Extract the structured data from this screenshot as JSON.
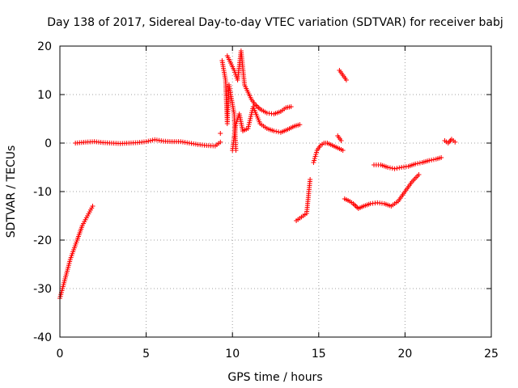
{
  "chart_data": {
    "type": "scatter",
    "title": "Day 138 of 2017, Sidereal Day-to-day VTEC variation (SDTVAR) for receiver babj",
    "xlabel": "GPS time / hours",
    "ylabel": "SDTVAR / TECUs",
    "xlim": [
      0,
      25
    ],
    "ylim": [
      -40,
      20
    ],
    "xticks": [
      0,
      5,
      10,
      15,
      20,
      25
    ],
    "yticks": [
      -40,
      -30,
      -20,
      -10,
      0,
      10,
      20
    ],
    "grid": true,
    "marker": "+",
    "color": "#ff0000",
    "segments": [
      {
        "name": "descent-start",
        "x": [
          0.0,
          0.3,
          0.6,
          1.0,
          1.3,
          1.6,
          1.9
        ],
        "y": [
          -32,
          -28,
          -24,
          -20,
          -17,
          -15,
          -13
        ]
      },
      {
        "name": "baseline-1",
        "x": [
          0.9,
          1.5,
          2.0,
          2.5,
          3.0,
          3.5,
          4.0,
          4.5,
          5.0,
          5.5,
          6.0,
          6.5,
          7.0,
          7.5,
          8.0,
          8.5,
          9.0,
          9.3
        ],
        "y": [
          0.0,
          0.2,
          0.3,
          0.1,
          0.0,
          -0.1,
          0.0,
          0.1,
          0.3,
          0.7,
          0.4,
          0.3,
          0.3,
          0.0,
          -0.3,
          -0.5,
          -0.6,
          0.2
        ]
      },
      {
        "name": "scatter-9h",
        "x": [
          9.3,
          9.4,
          9.5,
          9.6,
          9.7,
          9.8,
          9.9,
          10.0,
          10.1,
          10.2
        ],
        "y": [
          2.0,
          17.0,
          15.0,
          13.0,
          4.0,
          12.0,
          10.0,
          8.0,
          6.0,
          -1.5
        ]
      },
      {
        "name": "upper-branch",
        "x": [
          9.7,
          9.9,
          10.1,
          10.3,
          10.5,
          10.7,
          10.9,
          11.1,
          11.3,
          11.6,
          12.0,
          12.4,
          12.8,
          13.1,
          13.4
        ],
        "y": [
          18.0,
          16.5,
          15.0,
          13.0,
          19.0,
          12.0,
          10.5,
          9.0,
          8.0,
          7.0,
          6.2,
          6.0,
          6.5,
          7.3,
          7.5
        ]
      },
      {
        "name": "lower-branch",
        "x": [
          10.0,
          10.2,
          10.4,
          10.6,
          10.9,
          11.2,
          11.6,
          12.0,
          12.4,
          12.8,
          13.2,
          13.6,
          13.9
        ],
        "y": [
          -1.5,
          4.0,
          6.0,
          2.5,
          3.0,
          7.5,
          4.0,
          3.0,
          2.5,
          2.2,
          2.8,
          3.5,
          3.8
        ]
      },
      {
        "name": "late-rise-1",
        "x": [
          13.7,
          13.9,
          14.1,
          14.3,
          14.5
        ],
        "y": [
          -16.0,
          -15.5,
          -15.0,
          -14.5,
          -7.5
        ]
      },
      {
        "name": "hump-15h",
        "x": [
          14.7,
          14.9,
          15.1,
          15.3,
          15.5,
          15.8,
          16.1,
          16.4
        ],
        "y": [
          -4.0,
          -1.5,
          -0.5,
          0.0,
          0.0,
          -0.5,
          -1.0,
          -1.5
        ]
      },
      {
        "name": "peak-16h",
        "x": [
          16.2,
          16.4,
          16.6
        ],
        "y": [
          15.0,
          14.0,
          13.0
        ]
      },
      {
        "name": "small-16h",
        "x": [
          16.1,
          16.3
        ],
        "y": [
          1.5,
          0.5
        ]
      },
      {
        "name": "mid-drop",
        "x": [
          16.5,
          16.8,
          17.0,
          17.3,
          17.6,
          18.0,
          18.4,
          18.8,
          19.2,
          19.6,
          20.0,
          20.4,
          20.8
        ],
        "y": [
          -11.5,
          -12.0,
          -12.5,
          -13.5,
          -13.0,
          -12.5,
          -12.3,
          -12.5,
          -13.0,
          -12.0,
          -10.0,
          -8.0,
          -6.5
        ]
      },
      {
        "name": "upper-tail",
        "x": [
          18.2,
          18.6,
          19.0,
          19.4,
          19.8,
          20.2,
          20.6,
          21.0,
          21.4,
          21.8,
          22.1
        ],
        "y": [
          -4.5,
          -4.5,
          -5.0,
          -5.3,
          -5.0,
          -4.8,
          -4.3,
          -4.0,
          -3.6,
          -3.3,
          -3.0
        ]
      },
      {
        "name": "end-cluster",
        "x": [
          22.3,
          22.5,
          22.7,
          22.9
        ],
        "y": [
          0.5,
          0.0,
          0.8,
          0.2
        ]
      }
    ]
  }
}
